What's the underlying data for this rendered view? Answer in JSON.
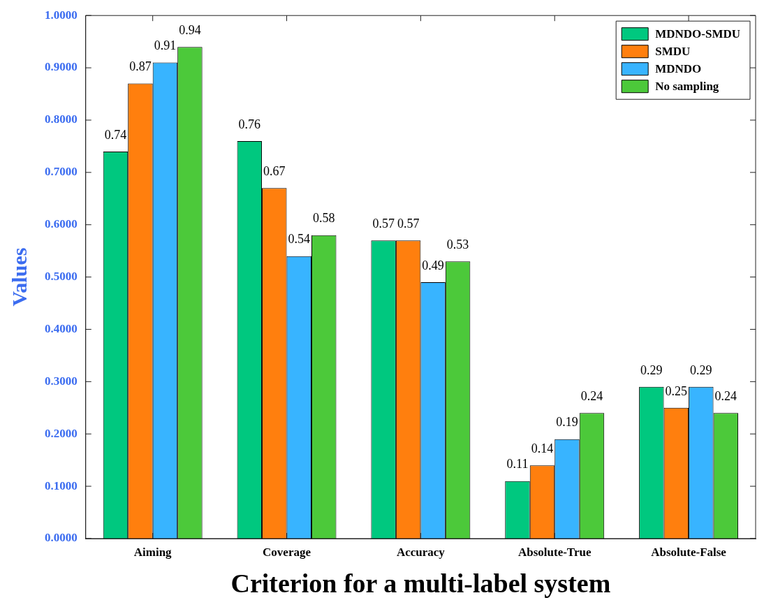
{
  "chart_data": {
    "type": "bar",
    "xlabel": "Criterion for a multi-label system",
    "ylabel": "Values",
    "categories": [
      "Aiming",
      "Coverage",
      "Accuracy",
      "Absolute-True",
      "Absolute-False"
    ],
    "series": [
      {
        "name": "MDNDO-SMDU",
        "color": "#00c87f",
        "values": [
          0.74,
          0.76,
          0.57,
          0.11,
          0.29
        ]
      },
      {
        "name": "SMDU",
        "color": "#ff7f0e",
        "values": [
          0.87,
          0.67,
          0.57,
          0.14,
          0.25
        ]
      },
      {
        "name": "MDNDO",
        "color": "#38b4ff",
        "values": [
          0.91,
          0.54,
          0.49,
          0.19,
          0.29
        ]
      },
      {
        "name": "No sampling",
        "color": "#4cc93a",
        "values": [
          0.94,
          0.58,
          0.53,
          0.24,
          0.24
        ]
      }
    ],
    "ylim": [
      0,
      1
    ],
    "yticks": [
      {
        "value": 0,
        "label": "0.0000"
      },
      {
        "value": 0.1,
        "label": "0.1000"
      },
      {
        "value": 0.2,
        "label": "0.2000"
      },
      {
        "value": 0.3,
        "label": "0.3000"
      },
      {
        "value": 0.4,
        "label": "0.4000"
      },
      {
        "value": 0.5,
        "label": "0.5000"
      },
      {
        "value": 0.6,
        "label": "0.6000"
      },
      {
        "value": 0.7,
        "label": "0.7000"
      },
      {
        "value": 0.8,
        "label": "0.8000"
      },
      {
        "value": 0.9,
        "label": "0.9000"
      },
      {
        "value": 1,
        "label": "1.0000"
      }
    ],
    "grid": false,
    "legend": "top right",
    "data_labels": true
  }
}
